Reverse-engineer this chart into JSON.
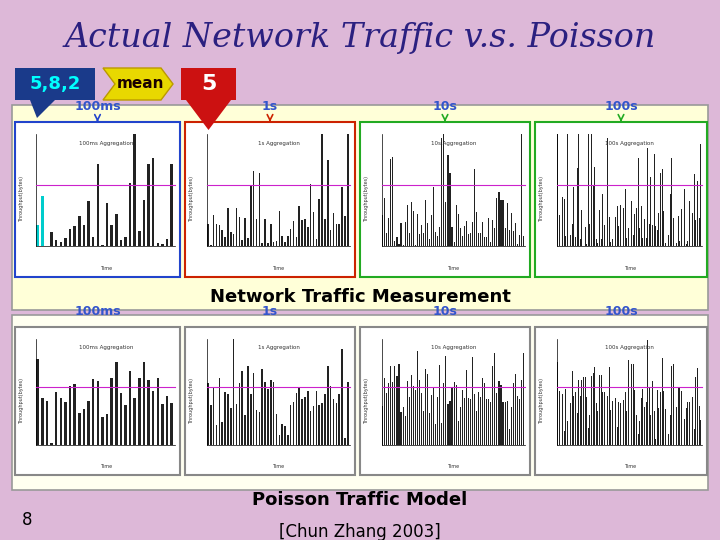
{
  "title": "Actual Network Traffic v.s. Poisson",
  "title_color": "#2B2080",
  "title_fontsize": 24,
  "slide_bg": "#DDB8D8",
  "badge_582_text": "5,8,2",
  "badge_582_bg": "#1A3A8A",
  "badge_582_fg": "#00FFFF",
  "badge_mean_text": "mean",
  "badge_mean_bg": "#E8D800",
  "badge_mean_fg": "#1A0000",
  "badge_5_text": "5",
  "badge_5_bg": "#CC1111",
  "badge_5_fg": "white",
  "upper_box_bg": "#FFFFD8",
  "upper_box_border": "#999999",
  "lower_box_bg": "#FFFFF0",
  "lower_box_border": "#999999",
  "upper_label_color": "#3355CC",
  "upper_label_fontsize": 9,
  "lower_label_color": "#3355CC",
  "lower_label_fontsize": 9,
  "mid_section_text": "Network Traffic Measurement",
  "mid_section_fontsize": 13,
  "lower_section_text": "Poisson Traffic Model",
  "lower_section_fontsize": 13,
  "panel_border_colors": [
    "#2244CC",
    "#CC2200",
    "#22AA22",
    "#22AA22"
  ],
  "lower_panel_border": "#888888",
  "page_number": "8",
  "citation": "[Chun Zhang 2003]",
  "citation_fontsize": 12,
  "page_num_fontsize": 12,
  "magenta_line_color": "#CC22CC",
  "cyan_bar_color": "#00CCCC",
  "bar_color": "#222222"
}
